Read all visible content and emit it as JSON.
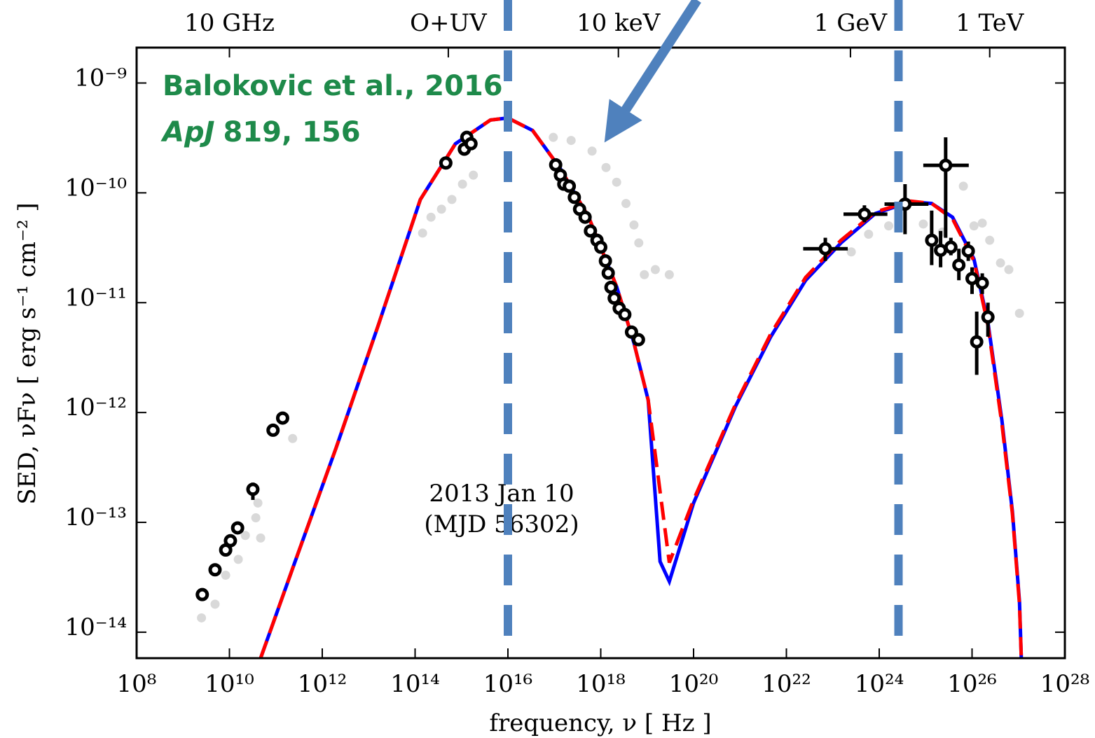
{
  "chart_data": {
    "type": "scatter",
    "xlabel": "frequency, ν [ Hz ]",
    "ylabel": "SED, νFν [ erg s⁻¹ cm⁻² ]",
    "xscale": "log",
    "yscale": "log",
    "xlim": [
      100000000.0,
      1e+28
    ],
    "ylim": [
      5.8e-15,
      2.1e-09
    ],
    "xticks": [
      {
        "value": 100000000.0,
        "label": "10⁸"
      },
      {
        "value": 10000000000.0,
        "label": "10¹⁰"
      },
      {
        "value": 1000000000000.0,
        "label": "10¹²"
      },
      {
        "value": 100000000000000.0,
        "label": "10¹⁴"
      },
      {
        "value": 1e+16,
        "label": "10¹⁶"
      },
      {
        "value": 1e+18,
        "label": "10¹⁸"
      },
      {
        "value": 1e+20,
        "label": "10²⁰"
      },
      {
        "value": 1e+22,
        "label": "10²²"
      },
      {
        "value": 1e+24,
        "label": "10²⁴"
      },
      {
        "value": 1e+26,
        "label": "10²⁶"
      },
      {
        "value": 1e+28,
        "label": "10²⁸"
      }
    ],
    "yticks": [
      {
        "value": 1e-14,
        "label": "10⁻¹⁴"
      },
      {
        "value": 1e-13,
        "label": "10⁻¹³"
      },
      {
        "value": 1e-12,
        "label": "10⁻¹²"
      },
      {
        "value": 1e-11,
        "label": "10⁻¹¹"
      },
      {
        "value": 1e-10,
        "label": "10⁻¹⁰"
      },
      {
        "value": 1e-09,
        "label": "10⁻⁹"
      }
    ],
    "x2ticks": [
      {
        "value": 10000000000.0,
        "label": "10 GHz"
      },
      {
        "value": 520000000000000.0,
        "label": "O+UV"
      },
      {
        "value": 2.4e+18,
        "label": "10 keV"
      },
      {
        "value": 2.4e+23,
        "label": "1 GeV"
      },
      {
        "value": 2.4e+26,
        "label": "1 TeV"
      }
    ],
    "citation": "Balokovic et al., 2016",
    "journal": "ApJ",
    "reference": "819, 156",
    "annotation": [
      "2013 Jan 10",
      "(MJD 56302)"
    ],
    "vlines": {
      "color": "#4f81bd",
      "x": [
        1e+16,
        2.6e+24
      ]
    },
    "series": [
      {
        "kind": "points",
        "color": "#d9d9d9",
        "x": [
          2500000000.0,
          4900000000.0,
          8300000000.0,
          15500000000.0,
          22000000000.0,
          37000000000.0,
          47000000000.0,
          41000000000.0,
          230000000000.0,
          145000000000000.0,
          220000000000000.0,
          370000000000000.0,
          620000000000000.0,
          1050000000000000.0,
          1800000000000000.0,
          9.5e+16,
          2.3e+17,
          6.5e+17,
          1.3e+18,
          2.2e+18,
          3.5e+18,
          5.2e+18,
          6.6e+18,
          8.7e+18,
          1.5e+19,
          3e+19,
          2.5e+23,
          5.9e+23,
          1.6e+24,
          8.9e+24,
          2.3e+25,
          6.5e+25,
          1.1e+26,
          1.66e+26,
          2.4e+26,
          4.1e+26,
          6.2e+26,
          1.05e+27
        ],
        "values": [
          1.35e-14,
          1.8e-14,
          3.3e-14,
          4.6e-14,
          7.6e-14,
          1.1e-13,
          7.2e-14,
          1.5e-13,
          5.8e-13,
          4.3e-11,
          6e-11,
          7.1e-11,
          8.7e-11,
          1.2e-10,
          1.45e-10,
          3.2e-10,
          3e-10,
          2.4e-10,
          1.7e-10,
          1.25e-10,
          8e-11,
          5.1e-11,
          3.5e-11,
          1.8e-11,
          2e-11,
          1.8e-11,
          2.9e-11,
          4.2e-11,
          5e-11,
          5.2e-11,
          4.4e-11,
          1.15e-10,
          5e-11,
          5.3e-11,
          3.7e-11,
          2.3e-11,
          2e-11,
          8e-12
        ]
      },
      {
        "kind": "points",
        "color": "#000000",
        "x": [
          2600000000.0,
          4900000000.0,
          8300000000.0,
          10500000000.0,
          15000000000.0,
          32000000000.0,
          87000000000.0,
          140000000000.0,
          460000000000000.0,
          1150000000000000.0,
          1300000000000000.0,
          1600000000000000.0,
          1.07e+17,
          1.35e+17,
          1.6e+17,
          2.1e+17,
          2.7e+17,
          3.5e+17,
          4.6e+17,
          6e+17,
          8.3e+17,
          1e+18,
          1.26e+18,
          1.45e+18,
          1.66e+18,
          1.95e+18,
          2.5e+18,
          3.3e+18,
          4.6e+18,
          6.5e+18,
          6.9e+22,
          4.8e+23,
          3.6e+24,
          2.7e+25,
          1.35e+25,
          2.1e+25,
          3.5e+25,
          5.2e+25,
          8.3e+25,
          1e+26,
          1.26e+26,
          1.66e+26,
          2.2e+26
        ],
        "values": [
          2.2e-14,
          3.7e-14,
          5.6e-14,
          6.8e-14,
          8.9e-14,
          2e-13,
          6.9e-13,
          8.9e-13,
          1.87e-10,
          2.5e-10,
          3.2e-10,
          2.8e-10,
          1.8e-10,
          1.45e-10,
          1.2e-10,
          1.15e-10,
          9.1e-11,
          7.1e-11,
          6e-11,
          4.5e-11,
          3.7e-11,
          3.2e-11,
          2.4e-11,
          1.86e-11,
          1.38e-11,
          1.1e-11,
          8.9e-12,
          7.8e-12,
          5.4e-12,
          4.6e-12,
          3.1e-11,
          6.4e-11,
          7.9e-11,
          1.78e-10,
          3.7e-11,
          3e-11,
          3.2e-11,
          2.2e-11,
          2.95e-11,
          1.66e-11,
          4.4e-12,
          1.51e-11,
          7.4e-12
        ],
        "x_low": [
          null,
          null,
          null,
          null,
          null,
          null,
          null,
          null,
          null,
          null,
          null,
          null,
          null,
          null,
          null,
          null,
          null,
          null,
          null,
          null,
          null,
          null,
          null,
          null,
          null,
          null,
          null,
          null,
          null,
          null,
          2.3e+22,
          1.7e+23,
          1.3e+24,
          8.9e+24,
          null,
          null,
          null,
          null,
          null,
          null,
          null,
          null,
          null
        ],
        "x_high": [
          null,
          null,
          null,
          null,
          null,
          null,
          null,
          null,
          null,
          null,
          null,
          null,
          null,
          null,
          null,
          null,
          null,
          null,
          null,
          null,
          null,
          null,
          null,
          null,
          null,
          null,
          null,
          null,
          null,
          null,
          2.1e+23,
          1.5e+24,
          1.15e+25,
          8.5e+25,
          null,
          null,
          null,
          null,
          null,
          null,
          null,
          null,
          null
        ],
        "y_low": [
          null,
          null,
          null,
          null,
          null,
          1.6e-13,
          null,
          null,
          null,
          null,
          null,
          null,
          null,
          null,
          null,
          null,
          null,
          null,
          null,
          null,
          null,
          null,
          null,
          null,
          null,
          null,
          null,
          null,
          null,
          null,
          2.4e-11,
          5.4e-11,
          4.2e-11,
          3.9e-11,
          2.2e-11,
          2.1e-11,
          2.7e-11,
          1.6e-11,
          2.4e-11,
          1.2e-11,
          2.2e-12,
          1.2e-11,
          4.9e-12
        ],
        "y_high": [
          null,
          null,
          null,
          null,
          null,
          2.3e-13,
          null,
          null,
          null,
          null,
          null,
          null,
          null,
          null,
          null,
          null,
          null,
          null,
          null,
          null,
          null,
          null,
          null,
          null,
          null,
          null,
          null,
          null,
          null,
          null,
          3.9e-11,
          7.7e-11,
          1.2e-10,
          3.2e-10,
          6.9e-11,
          4.5e-11,
          3.9e-11,
          3.1e-11,
          3.6e-11,
          2.1e-11,
          8.3e-12,
          1.85e-11,
          1e-11
        ]
      },
      {
        "kind": "line",
        "color": "#0000ff",
        "dashed": false,
        "x": [
          47000000000.0,
          250000000000.0,
          2000000000000.0,
          16000000000000.0,
          130000000000000.0,
          740000000000000.0,
          4200000000000000.0,
          1e+16,
          3.4e+16,
          1.35e+17,
          5.5e+17,
          2.2e+18,
          5.2e+18,
          1.05e+19,
          1.9e+19,
          3e+19,
          1e+20,
          8.1e+20,
          4.6e+21,
          2.6e+22,
          1.5e+23,
          8.3e+23,
          4.8e+24,
          1.35e+25,
          3.8e+25,
          1.1e+26,
          2.2e+26,
          4.4e+26,
          7.4e+26,
          1.05e+27,
          1.15e+27
        ],
        "values": [
          5.8e-15,
          4.2e-14,
          4.8e-13,
          6.2e-12,
          8.7e-11,
          2.8e-10,
          4.6e-10,
          4.8e-10,
          3.7e-10,
          1.66e-10,
          6e-11,
          1.4e-11,
          4.3e-12,
          1.3e-12,
          4.4e-14,
          2.9e-14,
          1.5e-13,
          1.15e-12,
          4.9e-12,
          1.6e-11,
          3.5e-11,
          6.5e-11,
          8.3e-11,
          8e-11,
          6e-11,
          2.5e-11,
          6.6e-12,
          8.5e-13,
          1.26e-13,
          1.9e-14,
          5.8e-15
        ]
      },
      {
        "kind": "line",
        "color": "#ff0000",
        "dashed": true,
        "x": [
          47000000000.0,
          250000000000.0,
          2000000000000.0,
          16000000000000.0,
          130000000000000.0,
          740000000000000.0,
          4200000000000000.0,
          1e+16,
          3.4e+16,
          1.35e+17,
          5.5e+17,
          2.2e+18,
          5.2e+18,
          1.05e+19,
          3e+19,
          1e+20,
          8.1e+20,
          4.6e+21,
          2.6e+22,
          1.5e+23,
          8.3e+23,
          4.8e+24,
          1.35e+25,
          3.8e+25,
          1.1e+26,
          2.2e+26,
          4.4e+26,
          7.4e+26,
          1.05e+27,
          1.15e+27
        ],
        "values": [
          5.8e-15,
          4.2e-14,
          4.8e-13,
          6.2e-12,
          8.7e-11,
          2.8e-10,
          4.6e-10,
          4.8e-10,
          3.7e-10,
          1.66e-10,
          6e-11,
          1.4e-11,
          4.3e-12,
          1.3e-12,
          4.3e-14,
          1.6e-13,
          1.2e-12,
          5.2e-12,
          1.7e-11,
          3.7e-11,
          6.7e-11,
          8.4e-11,
          8e-11,
          5.8e-11,
          2.4e-11,
          6.2e-12,
          7.9e-13,
          1.2e-13,
          1.8e-14,
          5.8e-15
        ]
      }
    ]
  }
}
